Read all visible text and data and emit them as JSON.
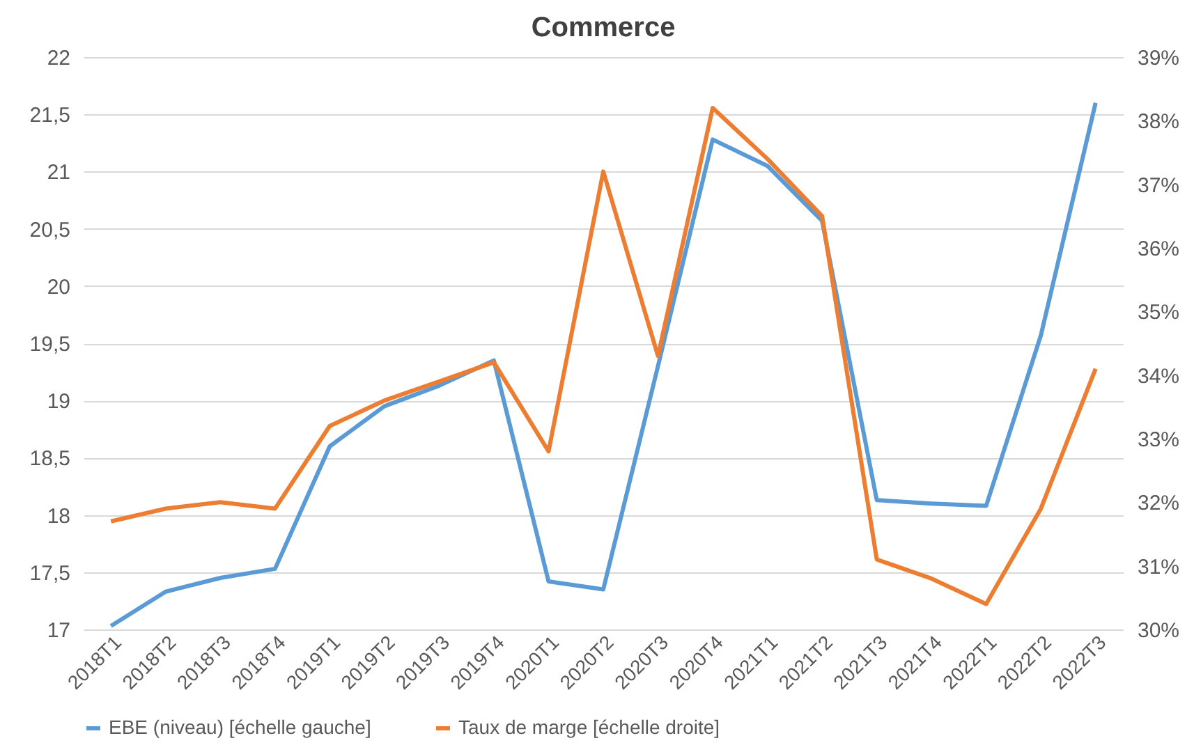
{
  "chart_data": {
    "type": "line",
    "title": "Commerce",
    "categories": [
      "2018T1",
      "2018T2",
      "2018T3",
      "2018T4",
      "2019T1",
      "2019T2",
      "2019T3",
      "2019T4",
      "2020T1",
      "2020T2",
      "2020T3",
      "2020T4",
      "2021T1",
      "2021T2",
      "2021T3",
      "2021T4",
      "2022T1",
      "2022T2",
      "2022T3"
    ],
    "series": [
      {
        "name": "EBE (niveau) [échelle gauche]",
        "color": "#5b9bd5",
        "values": [
          17.03,
          17.33,
          17.45,
          17.53,
          18.6,
          18.95,
          19.13,
          19.35,
          17.42,
          17.35,
          19.3,
          21.28,
          21.05,
          20.57,
          18.13,
          18.1,
          18.08,
          19.57,
          21.6
        ]
      },
      {
        "name": "Taux de marge [échelle droite]",
        "color": "#ed7d31",
        "axis": "y2",
        "values": [
          31.7,
          31.9,
          32.0,
          31.9,
          33.2,
          33.6,
          33.9,
          34.2,
          32.8,
          37.2,
          34.3,
          38.2,
          37.4,
          36.5,
          31.1,
          30.8,
          30.4,
          31.9,
          34.1
        ]
      }
    ],
    "ylim": [
      17,
      22
    ],
    "yticks": [
      17,
      {
        "value": 17.5,
        "label": "17,5"
      },
      18,
      {
        "value": 18.5,
        "label": "18,5"
      },
      19,
      {
        "value": 19.5,
        "label": "19,5"
      },
      20,
      {
        "value": 20.5,
        "label": "20,5"
      },
      21,
      {
        "value": 21.5,
        "label": "21,5"
      },
      22
    ],
    "y2lim": [
      30,
      39
    ],
    "y2ticks": [
      {
        "value": 30,
        "label": "30%"
      },
      {
        "value": 31,
        "label": "31%"
      },
      {
        "value": 32,
        "label": "32%"
      },
      {
        "value": 33,
        "label": "33%"
      },
      {
        "value": 34,
        "label": "34%"
      },
      {
        "value": 35,
        "label": "35%"
      },
      {
        "value": 36,
        "label": "36%"
      },
      {
        "value": 37,
        "label": "37%"
      },
      {
        "value": 38,
        "label": "38%"
      },
      {
        "value": 39,
        "label": "39%"
      }
    ],
    "grid": "y",
    "legend": "bottom",
    "marker": "none",
    "line_style": "solid"
  }
}
